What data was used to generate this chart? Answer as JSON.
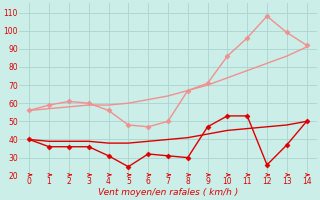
{
  "title": "",
  "xlabel": "Vent moyen/en rafales ( km/h )",
  "bg_color": "#cceee8",
  "grid_color": "#aad4ce",
  "xlim": [
    -0.5,
    14.5
  ],
  "ylim": [
    20,
    115
  ],
  "yticks": [
    20,
    30,
    40,
    50,
    60,
    70,
    80,
    90,
    100,
    110
  ],
  "xticks": [
    0,
    1,
    2,
    3,
    4,
    5,
    6,
    7,
    8,
    9,
    10,
    11,
    12,
    13,
    14
  ],
  "line1": {
    "x": [
      0,
      1,
      2,
      3,
      4,
      5,
      6,
      7,
      8,
      9,
      10,
      11,
      12,
      13,
      14
    ],
    "y": [
      56,
      59,
      61,
      60,
      56,
      48,
      47,
      50,
      67,
      71,
      86,
      96,
      108,
      99,
      92
    ],
    "color": "#f09090",
    "marker": "D",
    "markersize": 2.5,
    "linewidth": 1.0
  },
  "line2": {
    "x": [
      0,
      1,
      2,
      3,
      4,
      5,
      6,
      7,
      8,
      9,
      10,
      11,
      12,
      13,
      14
    ],
    "y": [
      56,
      57,
      58,
      59,
      59,
      60,
      62,
      64,
      67,
      70,
      74,
      78,
      82,
      86,
      91
    ],
    "color": "#f09090",
    "marker": null,
    "markersize": 0,
    "linewidth": 1.0
  },
  "line3": {
    "x": [
      0,
      1,
      2,
      3,
      4,
      5,
      6,
      7,
      8,
      9,
      10,
      11,
      12,
      13,
      14
    ],
    "y": [
      40,
      36,
      36,
      36,
      31,
      25,
      32,
      31,
      30,
      47,
      53,
      53,
      26,
      37,
      50
    ],
    "color": "#dd0000",
    "marker": "D",
    "markersize": 2.5,
    "linewidth": 1.0
  },
  "line4": {
    "x": [
      0,
      1,
      2,
      3,
      4,
      5,
      6,
      7,
      8,
      9,
      10,
      11,
      12,
      13,
      14
    ],
    "y": [
      40,
      39,
      39,
      39,
      38,
      38,
      39,
      40,
      41,
      43,
      45,
      46,
      47,
      48,
      50
    ],
    "color": "#dd0000",
    "marker": null,
    "markersize": 0,
    "linewidth": 1.0
  },
  "arrow_color": "#dd0000",
  "tick_color": "#dd0000",
  "label_color": "#dd0000",
  "tick_fontsize": 5.5,
  "xlabel_fontsize": 6.5
}
